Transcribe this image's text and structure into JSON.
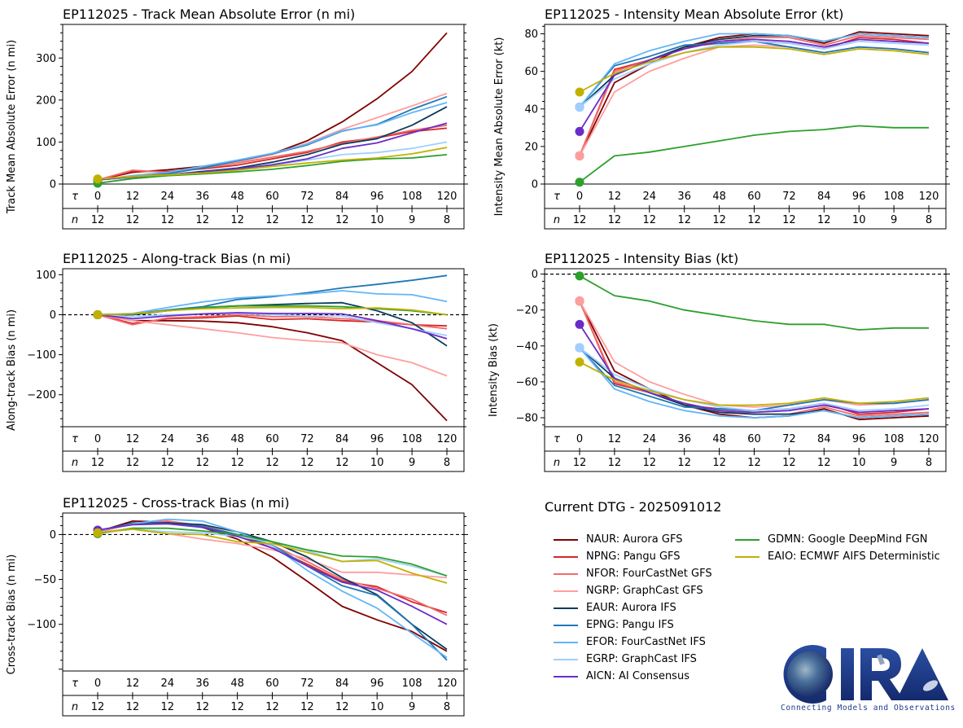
{
  "figure": {
    "dtg_label": "Current DTG - 2025091012",
    "logo": {
      "name": "CIRA",
      "tagline": "Connecting Models and Observations"
    }
  },
  "models": [
    {
      "id": "NAUR",
      "label": "NAUR: Aurora GFS",
      "color": "#800000"
    },
    {
      "id": "NPNG",
      "label": "NPNG: Pangu GFS",
      "color": "#d62728"
    },
    {
      "id": "NFOR",
      "label": "NFOR: FourCastNet GFS",
      "color": "#f26b6b"
    },
    {
      "id": "NGRP",
      "label": "NGRP: GraphCast GFS",
      "color": "#ff9e9e"
    },
    {
      "id": "EAUR",
      "label": "EAUR: Aurora IFS",
      "color": "#0b3c5d"
    },
    {
      "id": "EPNG",
      "label": "EPNG: Pangu IFS",
      "color": "#1f77b4"
    },
    {
      "id": "EFOR",
      "label": "EFOR: FourCastNet IFS",
      "color": "#64b5f6"
    },
    {
      "id": "EGRP",
      "label": "EGRP: GraphCast IFS",
      "color": "#a0cfff"
    },
    {
      "id": "AICN",
      "label": "AICN: AI Consensus",
      "color": "#6a2cc9"
    },
    {
      "id": "GDMN",
      "label": "GDMN: Google DeepMind FGN",
      "color": "#2ca02c"
    },
    {
      "id": "EAIO",
      "label": "EAIO: ECMWF AIFS Deterministic",
      "color": "#c2b000"
    }
  ],
  "chart_data": [
    {
      "type": "line",
      "panel": "top-left",
      "title": "EP112025 - Track Mean Absolute Error (n mi)",
      "ylabel": "Track Mean Absolute Error (n mi)",
      "xlabel": "",
      "x": [
        0,
        12,
        24,
        36,
        48,
        60,
        72,
        84,
        96,
        108,
        120
      ],
      "n": [
        12,
        12,
        12,
        12,
        12,
        12,
        12,
        12,
        10,
        9,
        8
      ],
      "row_labels": {
        "tau": "τ",
        "n": "n"
      },
      "ylim": [
        0,
        380
      ],
      "yticks": [
        0,
        100,
        200,
        300
      ],
      "zero_line": false,
      "series": [
        {
          "name": "NAUR",
          "values": [
            10,
            28,
            34,
            42,
            55,
            72,
            103,
            148,
            203,
            268,
            360
          ]
        },
        {
          "name": "NPNG",
          "values": [
            10,
            30,
            30,
            36,
            45,
            60,
            75,
            100,
            110,
            125,
            133
          ]
        },
        {
          "name": "NFOR",
          "values": [
            10,
            33,
            28,
            38,
            50,
            64,
            78,
            97,
            112,
            128,
            140
          ]
        },
        {
          "name": "NGRP",
          "values": [
            10,
            18,
            25,
            38,
            53,
            70,
            97,
            130,
            158,
            186,
            216
          ]
        },
        {
          "name": "EAUR",
          "values": [
            10,
            16,
            22,
            30,
            38,
            52,
            70,
            95,
            108,
            140,
            184
          ]
        },
        {
          "name": "EPNG",
          "values": [
            10,
            18,
            25,
            38,
            55,
            72,
            93,
            126,
            142,
            178,
            208
          ]
        },
        {
          "name": "EFOR",
          "values": [
            10,
            20,
            28,
            42,
            57,
            73,
            95,
            127,
            141,
            170,
            194
          ]
        },
        {
          "name": "EGRP",
          "values": [
            10,
            16,
            22,
            28,
            36,
            45,
            57,
            70,
            75,
            85,
            100
          ]
        },
        {
          "name": "AICN",
          "values": [
            10,
            17,
            22,
            28,
            36,
            46,
            60,
            85,
            98,
            122,
            145
          ]
        },
        {
          "name": "GDMN",
          "values": [
            2,
            13,
            20,
            24,
            29,
            35,
            44,
            54,
            60,
            62,
            70
          ]
        },
        {
          "name": "EAIO",
          "values": [
            12,
            18,
            22,
            26,
            33,
            42,
            50,
            57,
            62,
            72,
            87
          ]
        }
      ]
    },
    {
      "type": "line",
      "panel": "top-right",
      "title": "EP112025 - Intensity Mean Absolute Error (kt)",
      "ylabel": "Intensity Mean Absolute Error (kt)",
      "xlabel": "",
      "x": [
        0,
        12,
        24,
        36,
        48,
        60,
        72,
        84,
        96,
        108,
        120
      ],
      "n": [
        12,
        12,
        12,
        12,
        12,
        12,
        12,
        12,
        10,
        9,
        8
      ],
      "row_labels": {
        "tau": "τ",
        "n": "n"
      },
      "ylim": [
        0,
        85
      ],
      "yticks": [
        0,
        20,
        40,
        60,
        80
      ],
      "zero_line": false,
      "series": [
        {
          "name": "NAUR",
          "values": [
            15,
            54,
            64,
            73,
            78,
            80,
            79,
            75,
            81,
            80,
            79
          ]
        },
        {
          "name": "NPNG",
          "values": [
            15,
            61,
            66,
            73,
            75,
            76,
            75,
            72,
            78,
            77,
            75
          ]
        },
        {
          "name": "NFOR",
          "values": [
            15,
            60,
            66,
            72,
            76,
            78,
            78,
            74,
            79,
            78,
            77
          ]
        },
        {
          "name": "NGRP",
          "values": [
            15,
            49,
            60,
            67,
            73,
            74,
            73,
            70,
            73,
            72,
            70
          ]
        },
        {
          "name": "EAUR",
          "values": [
            41,
            58,
            66,
            73,
            77,
            79,
            79,
            76,
            80,
            79,
            78
          ]
        },
        {
          "name": "EPNG",
          "values": [
            41,
            63,
            68,
            74,
            75,
            76,
            73,
            70,
            73,
            72,
            70
          ]
        },
        {
          "name": "EFOR",
          "values": [
            41,
            64,
            71,
            76,
            80,
            80,
            79,
            76,
            80,
            79,
            78
          ]
        },
        {
          "name": "EGRP",
          "values": [
            41,
            56,
            64,
            70,
            74,
            76,
            75,
            72,
            76,
            75,
            74
          ]
        },
        {
          "name": "AICN",
          "values": [
            28,
            58,
            66,
            72,
            76,
            77,
            76,
            73,
            77,
            76,
            75
          ]
        },
        {
          "name": "GDMN",
          "values": [
            1,
            15,
            17,
            20,
            23,
            26,
            28,
            29,
            31,
            30,
            30
          ]
        },
        {
          "name": "EAIO",
          "values": [
            49,
            59,
            65,
            70,
            73,
            73,
            72,
            69,
            72,
            71,
            69
          ]
        }
      ]
    },
    {
      "type": "line",
      "panel": "middle-left",
      "title": "EP112025 - Along-track Bias (n mi)",
      "ylabel": "Along-track Bias (n mi)",
      "xlabel": "",
      "x": [
        0,
        12,
        24,
        36,
        48,
        60,
        72,
        84,
        96,
        108,
        120
      ],
      "n": [
        12,
        12,
        12,
        12,
        12,
        12,
        12,
        12,
        10,
        9,
        8
      ],
      "row_labels": {
        "tau": "τ",
        "n": "n"
      },
      "ylim": [
        -280,
        115
      ],
      "yticks": [
        -200,
        -100,
        0,
        100
      ],
      "zero_line": true,
      "series": [
        {
          "name": "NAUR",
          "values": [
            0,
            -15,
            -15,
            -16,
            -20,
            -30,
            -45,
            -65,
            -120,
            -175,
            -265
          ]
        },
        {
          "name": "NPNG",
          "values": [
            0,
            -22,
            -10,
            -8,
            -3,
            -12,
            -10,
            -15,
            -18,
            -25,
            -28
          ]
        },
        {
          "name": "NFOR",
          "values": [
            0,
            -25,
            -8,
            -5,
            0,
            -5,
            -5,
            -10,
            -15,
            -25,
            -35
          ]
        },
        {
          "name": "NGRP",
          "values": [
            0,
            -15,
            -25,
            -35,
            -45,
            -57,
            -65,
            -70,
            -100,
            -120,
            -153
          ]
        },
        {
          "name": "EAUR",
          "values": [
            0,
            0,
            10,
            18,
            22,
            25,
            28,
            30,
            10,
            -20,
            -78
          ]
        },
        {
          "name": "EPNG",
          "values": [
            0,
            2,
            12,
            20,
            38,
            45,
            55,
            67,
            76,
            86,
            98
          ]
        },
        {
          "name": "EFOR",
          "values": [
            0,
            3,
            18,
            32,
            42,
            47,
            52,
            60,
            52,
            50,
            33
          ]
        },
        {
          "name": "EGRP",
          "values": [
            0,
            -5,
            0,
            2,
            3,
            0,
            -3,
            -3,
            -20,
            -35,
            -52
          ]
        },
        {
          "name": "AICN",
          "values": [
            0,
            -10,
            -3,
            2,
            5,
            3,
            3,
            2,
            -15,
            -35,
            -60
          ]
        },
        {
          "name": "GDMN",
          "values": [
            0,
            2,
            10,
            18,
            22,
            22,
            22,
            20,
            15,
            10,
            0
          ]
        },
        {
          "name": "EAIO",
          "values": [
            0,
            2,
            10,
            15,
            17,
            18,
            18,
            15,
            17,
            12,
            0
          ]
        }
      ]
    },
    {
      "type": "line",
      "panel": "middle-right",
      "title": "EP112025 - Intensity Bias (kt)",
      "ylabel": "Intensity Bias (kt)",
      "xlabel": "",
      "x": [
        0,
        12,
        24,
        36,
        48,
        60,
        72,
        84,
        96,
        108,
        120
      ],
      "n": [
        12,
        12,
        12,
        12,
        12,
        12,
        12,
        12,
        10,
        9,
        8
      ],
      "row_labels": {
        "tau": "τ",
        "n": "n"
      },
      "ylim": [
        -85,
        3
      ],
      "yticks": [
        -80,
        -60,
        -40,
        -20,
        0
      ],
      "zero_line": true,
      "series": [
        {
          "name": "NAUR",
          "values": [
            -15,
            -54,
            -64,
            -73,
            -78,
            -80,
            -79,
            -75,
            -81,
            -80,
            -79
          ]
        },
        {
          "name": "NPNG",
          "values": [
            -15,
            -61,
            -66,
            -73,
            -75,
            -76,
            -75,
            -72,
            -78,
            -77,
            -75
          ]
        },
        {
          "name": "NFOR",
          "values": [
            -15,
            -60,
            -66,
            -72,
            -76,
            -78,
            -78,
            -74,
            -79,
            -78,
            -77
          ]
        },
        {
          "name": "NGRP",
          "values": [
            -15,
            -49,
            -60,
            -67,
            -73,
            -74,
            -73,
            -70,
            -73,
            -72,
            -70
          ]
        },
        {
          "name": "EAUR",
          "values": [
            -41,
            -58,
            -66,
            -73,
            -77,
            -78,
            -78,
            -76,
            -80,
            -79,
            -78
          ]
        },
        {
          "name": "EPNG",
          "values": [
            -41,
            -62,
            -68,
            -74,
            -75,
            -76,
            -73,
            -70,
            -72,
            -72,
            -70
          ]
        },
        {
          "name": "EFOR",
          "values": [
            -41,
            -64,
            -71,
            -76,
            -79,
            -80,
            -79,
            -76,
            -80,
            -79,
            -78
          ]
        },
        {
          "name": "EGRP",
          "values": [
            -41,
            -56,
            -64,
            -70,
            -74,
            -76,
            -75,
            -72,
            -76,
            -75,
            -73
          ]
        },
        {
          "name": "AICN",
          "values": [
            -28,
            -58,
            -66,
            -72,
            -76,
            -77,
            -76,
            -73,
            -77,
            -76,
            -75
          ]
        },
        {
          "name": "GDMN",
          "values": [
            -1,
            -12,
            -15,
            -20,
            -23,
            -26,
            -28,
            -28,
            -31,
            -30,
            -30
          ]
        },
        {
          "name": "EAIO",
          "values": [
            -49,
            -59,
            -65,
            -70,
            -73,
            -73,
            -72,
            -69,
            -72,
            -71,
            -69
          ]
        }
      ]
    },
    {
      "type": "line",
      "panel": "bottom-left",
      "title": "EP112025 - Cross-track Bias (n mi)",
      "ylabel": "Cross-track Bias (n mi)",
      "xlabel": "",
      "x": [
        0,
        12,
        24,
        36,
        48,
        60,
        72,
        84,
        96,
        108,
        120
      ],
      "n": [
        12,
        12,
        12,
        12,
        12,
        12,
        12,
        12,
        10,
        9,
        8
      ],
      "row_labels": {
        "tau": "τ",
        "n": "n"
      },
      "ylim": [
        -152,
        24
      ],
      "yticks": [
        -100,
        -50,
        0
      ],
      "zero_line": true,
      "series": [
        {
          "name": "NAUR",
          "values": [
            3,
            15,
            14,
            8,
            -5,
            -25,
            -52,
            -80,
            -95,
            -108,
            -130
          ]
        },
        {
          "name": "NPNG",
          "values": [
            3,
            12,
            14,
            8,
            0,
            -15,
            -33,
            -52,
            -58,
            -75,
            -87
          ]
        },
        {
          "name": "NFOR",
          "values": [
            3,
            12,
            15,
            10,
            0,
            -12,
            -30,
            -50,
            -60,
            -72,
            -90
          ]
        },
        {
          "name": "NGRP",
          "values": [
            3,
            6,
            1,
            -5,
            -10,
            -17,
            -27,
            -42,
            -42,
            -45,
            -48
          ]
        },
        {
          "name": "EAUR",
          "values": [
            4,
            13,
            13,
            11,
            3,
            -8,
            -25,
            -48,
            -67,
            -100,
            -128
          ]
        },
        {
          "name": "EPNG",
          "values": [
            4,
            12,
            12,
            9,
            0,
            -12,
            -35,
            -57,
            -68,
            -100,
            -140
          ]
        },
        {
          "name": "EFOR",
          "values": [
            4,
            12,
            17,
            15,
            3,
            -12,
            -40,
            -63,
            -82,
            -110,
            -137
          ]
        },
        {
          "name": "EGRP",
          "values": [
            2,
            6,
            3,
            2,
            -2,
            -8,
            -18,
            -30,
            -27,
            -35,
            -46
          ]
        },
        {
          "name": "AICN",
          "values": [
            5,
            11,
            12,
            8,
            -2,
            -15,
            -35,
            -53,
            -62,
            -80,
            -100
          ]
        },
        {
          "name": "GDMN",
          "values": [
            1,
            7,
            7,
            4,
            0,
            -8,
            -17,
            -24,
            -25,
            -33,
            -46
          ]
        },
        {
          "name": "EAIO",
          "values": [
            2,
            6,
            1,
            0,
            -8,
            -10,
            -20,
            -30,
            -29,
            -43,
            -54
          ]
        }
      ]
    }
  ]
}
